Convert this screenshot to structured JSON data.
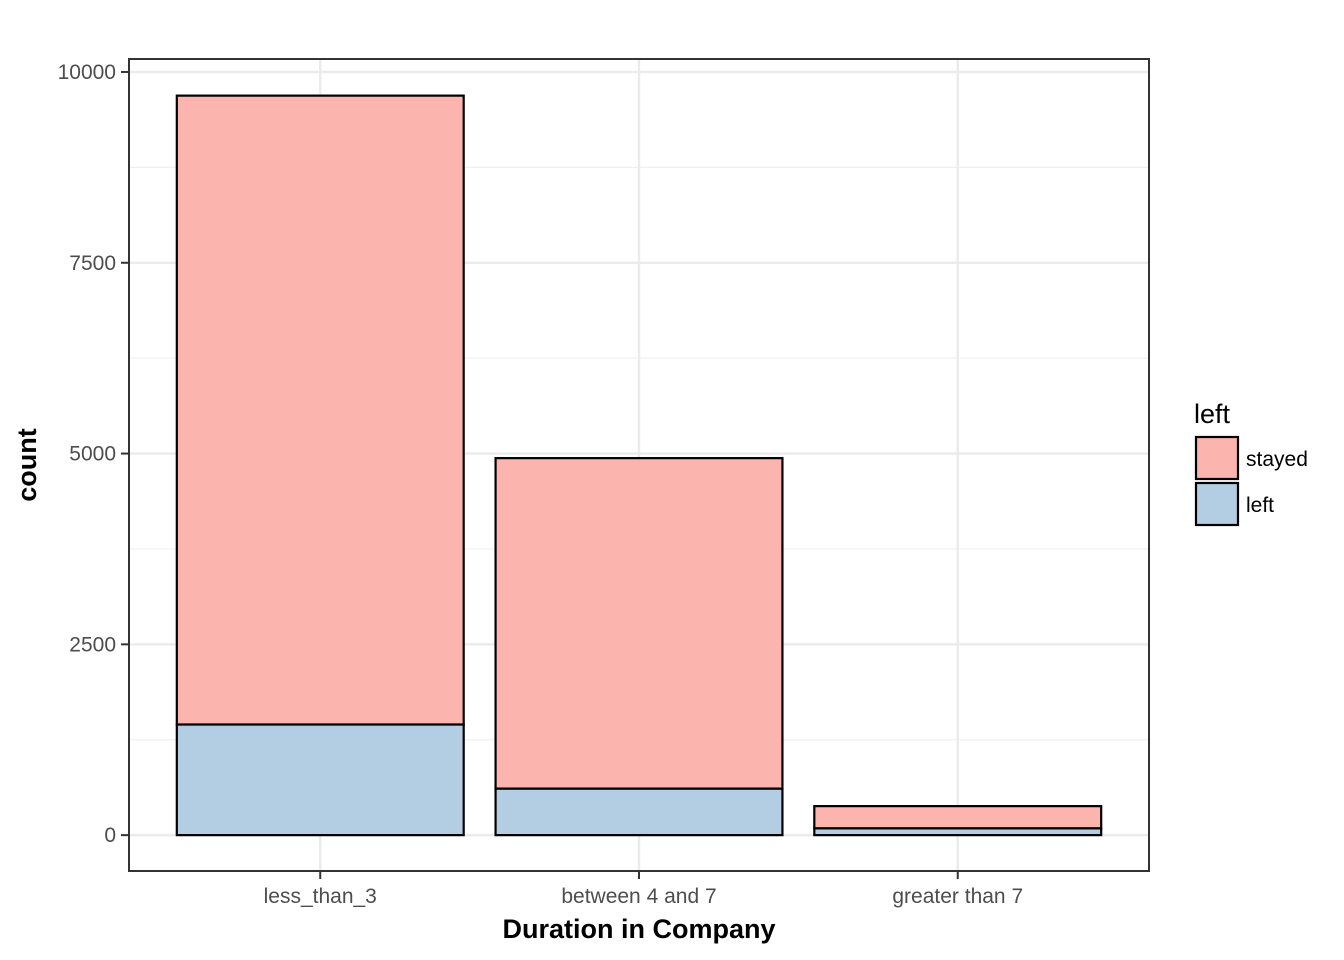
{
  "chart_data": {
    "type": "bar",
    "stacked": true,
    "title": "",
    "xlabel": "Duration in Company",
    "ylabel": "count",
    "categories": [
      "less_than_3",
      "between 4 and 7",
      "greater than 7"
    ],
    "series": [
      {
        "name": "left",
        "color": "#b3cde3",
        "values": [
          1450,
          610,
          90
        ]
      },
      {
        "name": "stayed",
        "color": "#fbb4ae",
        "values": [
          8240,
          4330,
          290
        ]
      }
    ],
    "ylim": [
      -470,
      10170
    ],
    "yticks": [
      0,
      2500,
      5000,
      7500,
      10000
    ],
    "grid": true,
    "legend": {
      "title": "left",
      "position": "right",
      "entries": [
        {
          "label": "stayed",
          "color": "#fbb4ae"
        },
        {
          "label": "left",
          "color": "#b3cde3"
        }
      ]
    }
  }
}
